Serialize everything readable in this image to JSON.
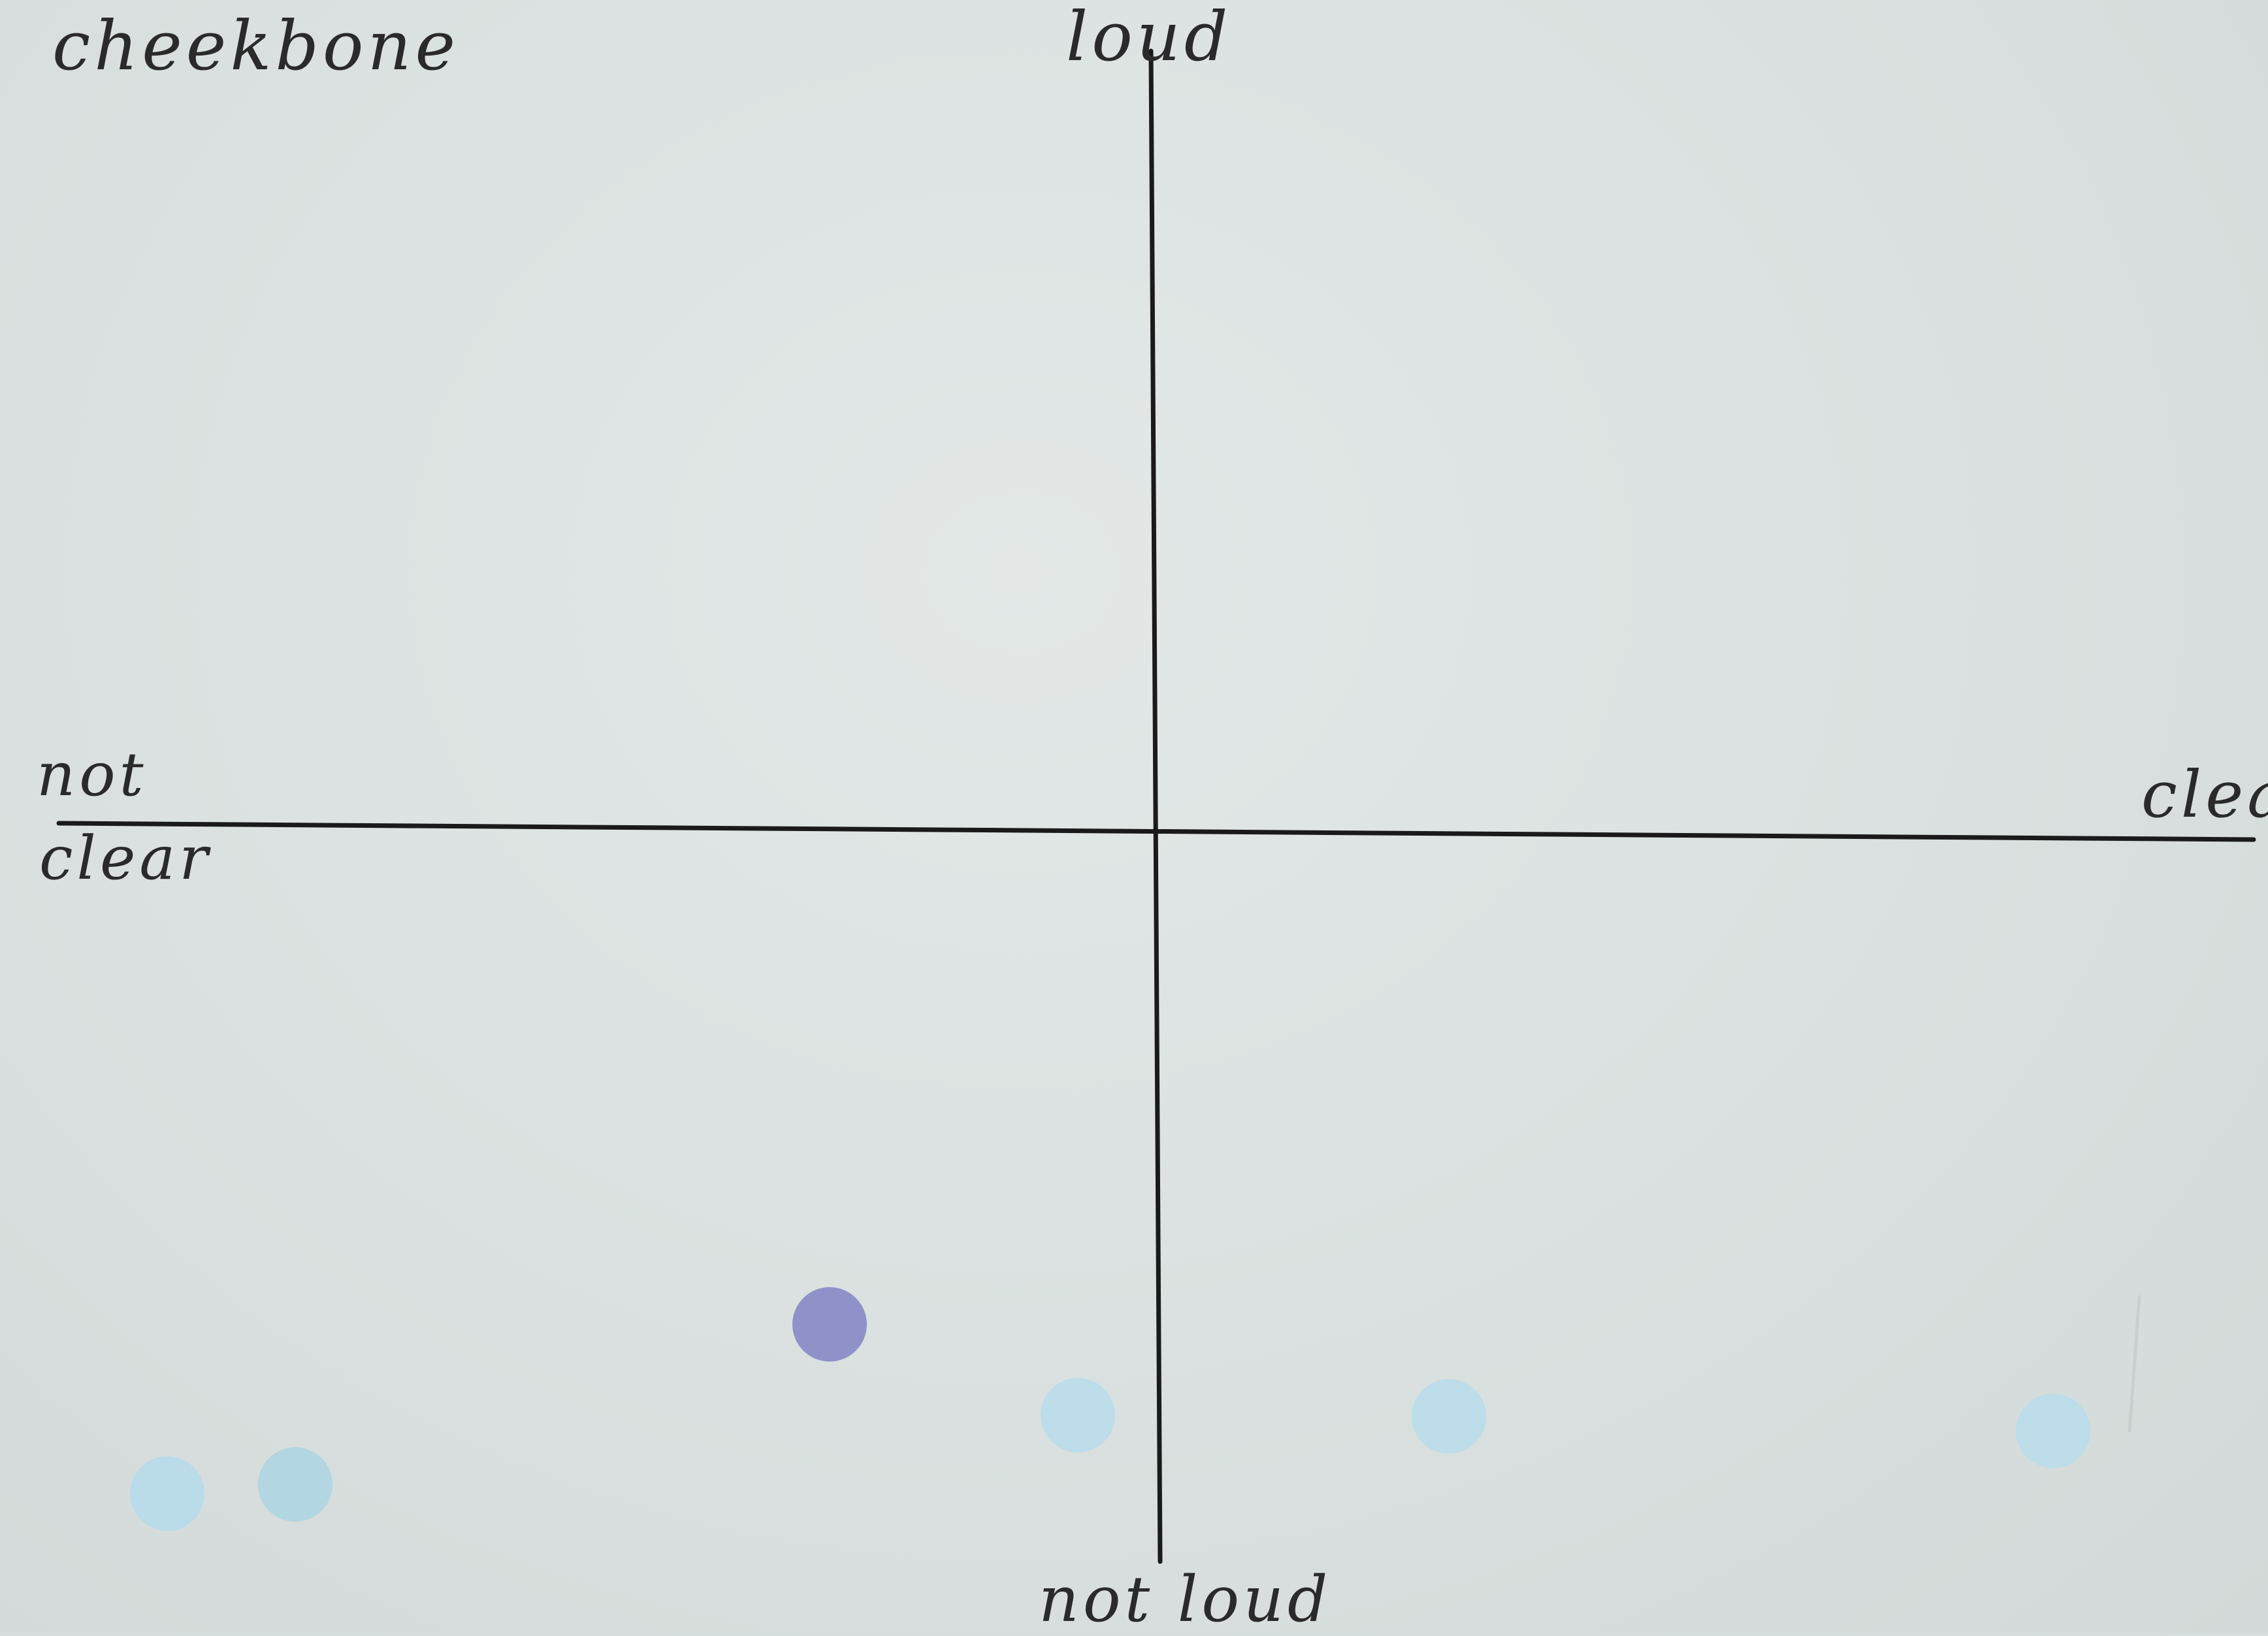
{
  "labels": {
    "corner": "cheekbone",
    "y_top": "loud",
    "y_bottom": "not loud",
    "x_left_line1": "not",
    "x_left_line2": "clear",
    "x_right": "clear"
  },
  "dots": [
    {
      "color": "#b9dbea",
      "fill_note": "light-blue"
    },
    {
      "color": "#b2d6e2",
      "fill_note": "light-blue"
    },
    {
      "color": "#8f92c9",
      "fill_note": "purple"
    },
    {
      "color": "#bcdde9",
      "fill_note": "light-blue"
    },
    {
      "color": "#bcdde9",
      "fill_note": "light-blue"
    },
    {
      "color": "#bcdde9",
      "fill_note": "light-blue"
    }
  ]
}
